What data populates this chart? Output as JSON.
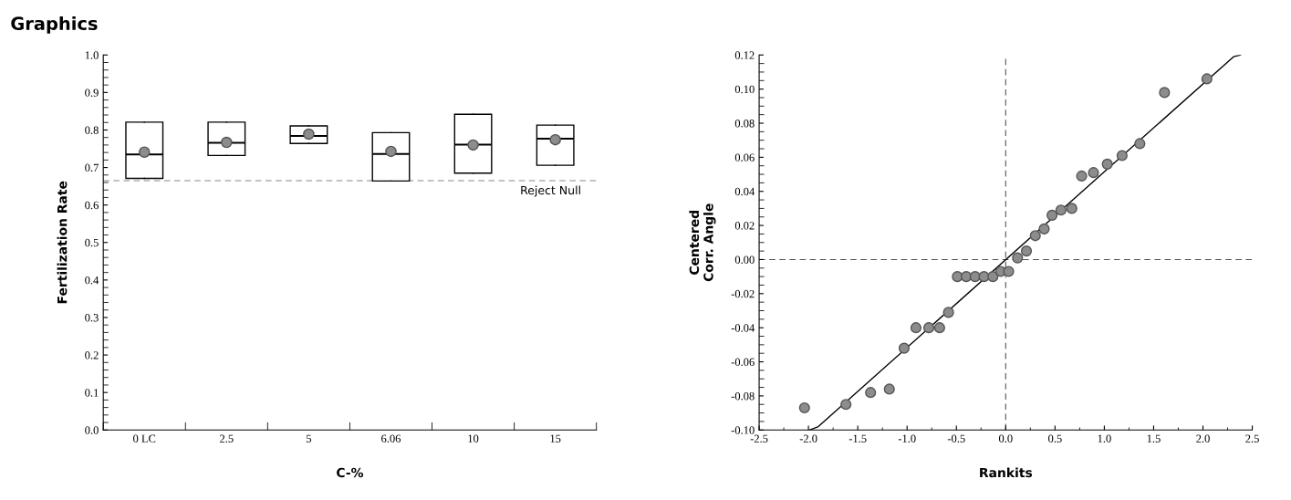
{
  "chart_data": [
    {
      "type": "box",
      "title": "Graphics",
      "xlabel": "C-%",
      "ylabel": "Fertilization Rate",
      "categories": [
        "0 LC",
        "2.5",
        "5",
        "6.06",
        "10",
        "15"
      ],
      "boxes": [
        {
          "low": 0.671,
          "q1": 0.671,
          "median": 0.735,
          "q3": 0.821,
          "high": 0.821,
          "mean": 0.741
        },
        {
          "low": 0.732,
          "q1": 0.732,
          "median": 0.766,
          "q3": 0.821,
          "high": 0.821,
          "mean": 0.767
        },
        {
          "low": 0.764,
          "q1": 0.764,
          "median": 0.784,
          "q3": 0.811,
          "high": 0.811,
          "mean": 0.789
        },
        {
          "low": 0.664,
          "q1": 0.664,
          "median": 0.736,
          "q3": 0.793,
          "high": 0.793,
          "mean": 0.743
        },
        {
          "low": 0.685,
          "q1": 0.685,
          "median": 0.761,
          "q3": 0.842,
          "high": 0.842,
          "mean": 0.76
        },
        {
          "low": 0.706,
          "q1": 0.706,
          "median": 0.777,
          "q3": 0.813,
          "high": 0.813,
          "mean": 0.774
        }
      ],
      "ylim": [
        0.0,
        1.0
      ],
      "yticks": [
        {
          "value": 0.0,
          "label": "0.0"
        },
        0.1,
        0.2,
        0.3,
        0.4,
        0.5,
        0.6,
        0.7,
        0.8,
        0.9,
        {
          "value": 1.0,
          "label": "1.0"
        }
      ],
      "ref_lines": [
        {
          "axis": "y",
          "value": 0.665,
          "label": "Reject Null",
          "color": "#888888",
          "line_style": "dashed"
        }
      ],
      "grid": false,
      "legend": false
    },
    {
      "type": "scatter",
      "xlabel": "Rankits",
      "ylabel": "Centered\nCorr. Angle",
      "series": [
        {
          "color": "#8c8c8c",
          "marker": "circle",
          "x": [
            -2.04,
            -1.62,
            -1.37,
            -1.18,
            -1.03,
            -0.91,
            -0.78,
            -0.67,
            -0.58,
            -0.49,
            -0.4,
            -0.31,
            -0.22,
            -0.13,
            -0.05,
            0.03,
            0.12,
            0.21,
            0.3,
            0.39,
            0.47,
            0.56,
            0.67,
            0.77,
            0.89,
            1.03,
            1.18,
            1.36,
            1.61,
            2.04
          ],
          "values": [
            -0.087,
            -0.085,
            -0.078,
            -0.076,
            -0.052,
            -0.04,
            -0.04,
            -0.04,
            -0.031,
            -0.01,
            -0.01,
            -0.01,
            -0.01,
            -0.01,
            -0.007,
            -0.007,
            0.001,
            0.005,
            0.014,
            0.018,
            0.026,
            0.029,
            0.03,
            0.049,
            0.051,
            0.056,
            0.061,
            0.068,
            0.098,
            0.106
          ]
        },
        {
          "type": "line",
          "color": "#000000",
          "marker": "none",
          "line_style": "solid",
          "x": [
            -1.99,
            -1.9,
            2.31,
            2.38
          ],
          "values": [
            -0.1,
            -0.098,
            0.119,
            0.12
          ]
        }
      ],
      "xlim": [
        -2.5,
        2.5
      ],
      "xticks": [
        {
          "value": -2.5,
          "label": "-2.5"
        },
        {
          "value": -2.0,
          "label": "-2.0"
        },
        {
          "value": -1.5,
          "label": "-1.5"
        },
        {
          "value": -1.0,
          "label": "-1.0"
        },
        {
          "value": -0.5,
          "label": "-0.5"
        },
        {
          "value": 0.0,
          "label": "0.0"
        },
        {
          "value": 0.5,
          "label": "0.5"
        },
        {
          "value": 1.0,
          "label": "1.0"
        },
        {
          "value": 1.5,
          "label": "1.5"
        },
        {
          "value": 2.0,
          "label": "2.0"
        },
        {
          "value": 2.5,
          "label": "2.5"
        }
      ],
      "ylim": [
        -0.1,
        0.12
      ],
      "yticks": [
        {
          "value": -0.1,
          "label": "-0.10"
        },
        {
          "value": -0.08,
          "label": "-0.08"
        },
        {
          "value": -0.06,
          "label": "-0.06"
        },
        {
          "value": -0.04,
          "label": "-0.04"
        },
        {
          "value": -0.02,
          "label": "-0.02"
        },
        {
          "value": 0.0,
          "label": "0.00"
        },
        {
          "value": 0.02,
          "label": "0.02"
        },
        {
          "value": 0.04,
          "label": "0.04"
        },
        {
          "value": 0.06,
          "label": "0.06"
        },
        {
          "value": 0.08,
          "label": "0.08"
        },
        {
          "value": 0.1,
          "label": "0.10"
        },
        {
          "value": 0.12,
          "label": "0.12"
        }
      ],
      "ref_lines": [
        {
          "axis": "x",
          "value": 0.0,
          "color": "#555555",
          "line_style": "dashed"
        },
        {
          "axis": "y",
          "value": 0.0,
          "color": "#555555",
          "line_style": "dashed"
        }
      ],
      "grid": false,
      "legend": false
    }
  ]
}
